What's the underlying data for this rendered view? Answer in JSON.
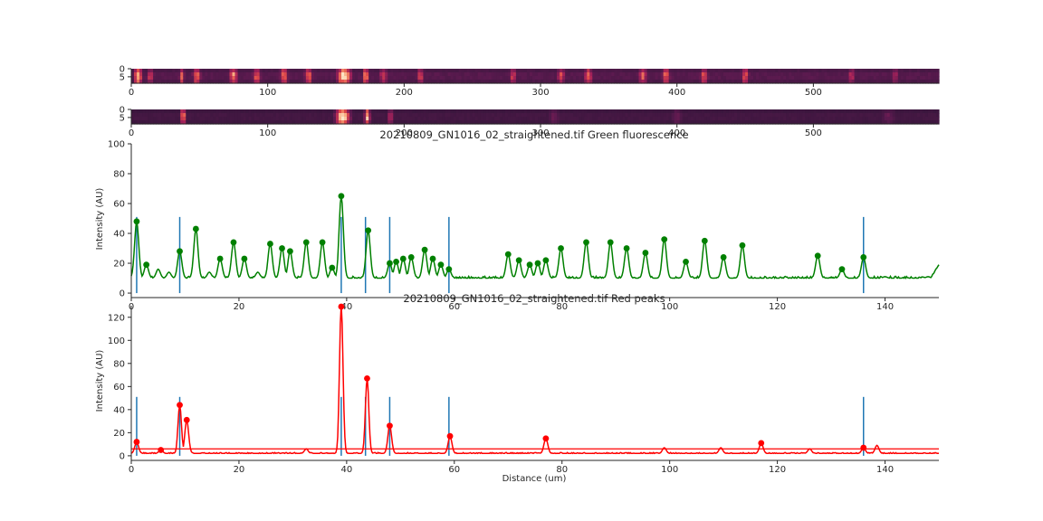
{
  "chart_data": [
    {
      "type": "heatmap",
      "xlim": [
        0,
        592
      ],
      "ylim": [
        0,
        9
      ],
      "xticks": [
        0,
        100,
        200,
        300,
        400,
        500
      ],
      "yticks": [
        0,
        5
      ],
      "colormap": [
        "#2d1536",
        "#5b1a4f",
        "#a3215a",
        "#e04a4a",
        "#f7a072",
        "#fde6c7"
      ],
      "background_value": 0.18,
      "hotspots": [
        {
          "x": 5,
          "w": 3,
          "v": 0.85
        },
        {
          "x": 14,
          "w": 2,
          "v": 0.55
        },
        {
          "x": 37,
          "w": 2,
          "v": 0.6
        },
        {
          "x": 48,
          "w": 3,
          "v": 0.65
        },
        {
          "x": 75,
          "w": 3,
          "v": 0.75
        },
        {
          "x": 92,
          "w": 3,
          "v": 0.6
        },
        {
          "x": 112,
          "w": 3,
          "v": 0.7
        },
        {
          "x": 130,
          "w": 3,
          "v": 0.65
        },
        {
          "x": 156,
          "w": 5,
          "v": 1.0
        },
        {
          "x": 172,
          "w": 2,
          "v": 0.8
        },
        {
          "x": 185,
          "w": 3,
          "v": 0.55
        },
        {
          "x": 212,
          "w": 3,
          "v": 0.5
        },
        {
          "x": 280,
          "w": 2,
          "v": 0.6
        },
        {
          "x": 315,
          "w": 3,
          "v": 0.55
        },
        {
          "x": 335,
          "w": 3,
          "v": 0.65
        },
        {
          "x": 375,
          "w": 3,
          "v": 0.6
        },
        {
          "x": 392,
          "w": 3,
          "v": 0.65
        },
        {
          "x": 420,
          "w": 3,
          "v": 0.6
        },
        {
          "x": 450,
          "w": 3,
          "v": 0.6
        },
        {
          "x": 528,
          "w": 3,
          "v": 0.45
        },
        {
          "x": 560,
          "w": 3,
          "v": 0.4
        }
      ]
    },
    {
      "type": "heatmap",
      "xlim": [
        0,
        592
      ],
      "ylim": [
        0,
        9
      ],
      "xticks": [
        0,
        100,
        200,
        300,
        400,
        500
      ],
      "yticks": [
        0,
        5
      ],
      "colormap": [
        "#2d1536",
        "#5b1a4f",
        "#a3215a",
        "#e04a4a",
        "#f7a072",
        "#fde6c7"
      ],
      "background_value": 0.1,
      "hotspots": [
        {
          "x": 38,
          "w": 2,
          "v": 0.75
        },
        {
          "x": 155,
          "w": 5,
          "v": 1.0
        },
        {
          "x": 173,
          "w": 2,
          "v": 0.85
        },
        {
          "x": 190,
          "w": 2,
          "v": 0.45
        },
        {
          "x": 310,
          "w": 4,
          "v": 0.25
        },
        {
          "x": 400,
          "w": 4,
          "v": 0.25
        },
        {
          "x": 555,
          "w": 6,
          "v": 0.22
        }
      ]
    },
    {
      "type": "line",
      "title": "20210809_GN1016_02_straightened.tif Green fluorescence",
      "ylabel": "Intensity (AU)",
      "xlabel": "",
      "xlim": [
        0,
        150
      ],
      "ylim": [
        -3,
        100
      ],
      "xticks": [
        0,
        20,
        40,
        60,
        80,
        100,
        120,
        140
      ],
      "yticks": [
        0,
        20,
        40,
        60,
        80,
        100
      ],
      "color": "#008000",
      "baseline": 10,
      "peaks": [
        {
          "x": 1.0,
          "y": 48
        },
        {
          "x": 2.8,
          "y": 19
        },
        {
          "x": 5.0,
          "y": 16,
          "hidden": true
        },
        {
          "x": 9.0,
          "y": 28
        },
        {
          "x": 12.0,
          "y": 43
        },
        {
          "x": 16.5,
          "y": 23
        },
        {
          "x": 19.0,
          "y": 34
        },
        {
          "x": 21.0,
          "y": 23
        },
        {
          "x": 25.8,
          "y": 33
        },
        {
          "x": 28.0,
          "y": 30
        },
        {
          "x": 29.5,
          "y": 28
        },
        {
          "x": 32.5,
          "y": 34
        },
        {
          "x": 35.5,
          "y": 34
        },
        {
          "x": 37.3,
          "y": 17
        },
        {
          "x": 39.0,
          "y": 65
        },
        {
          "x": 44.0,
          "y": 42
        },
        {
          "x": 48.0,
          "y": 20
        },
        {
          "x": 49.2,
          "y": 21
        },
        {
          "x": 50.5,
          "y": 23
        },
        {
          "x": 52.0,
          "y": 24
        },
        {
          "x": 54.5,
          "y": 29
        },
        {
          "x": 56.0,
          "y": 23
        },
        {
          "x": 57.5,
          "y": 19
        },
        {
          "x": 59.0,
          "y": 16
        },
        {
          "x": 70.0,
          "y": 26
        },
        {
          "x": 72.0,
          "y": 22
        },
        {
          "x": 74.0,
          "y": 19
        },
        {
          "x": 75.5,
          "y": 20
        },
        {
          "x": 77.0,
          "y": 22
        },
        {
          "x": 79.8,
          "y": 30
        },
        {
          "x": 84.5,
          "y": 34
        },
        {
          "x": 89.0,
          "y": 34
        },
        {
          "x": 92.0,
          "y": 30
        },
        {
          "x": 95.5,
          "y": 27
        },
        {
          "x": 99.0,
          "y": 36
        },
        {
          "x": 103.0,
          "y": 21
        },
        {
          "x": 106.5,
          "y": 35
        },
        {
          "x": 110.0,
          "y": 24
        },
        {
          "x": 113.5,
          "y": 32
        },
        {
          "x": 127.5,
          "y": 25
        },
        {
          "x": 132.0,
          "y": 16
        },
        {
          "x": 136.0,
          "y": 24
        }
      ],
      "extra_bumps": [
        {
          "x": 7.0,
          "y": 14
        },
        {
          "x": 14.5,
          "y": 14
        },
        {
          "x": 23.5,
          "y": 14
        },
        {
          "x": 62.0,
          "y": 8
        },
        {
          "x": 66.0,
          "y": 7
        },
        {
          "x": 118.0,
          "y": 8
        },
        {
          "x": 123.0,
          "y": 7
        },
        {
          "x": 140.0,
          "y": 11
        },
        {
          "x": 144.0,
          "y": 10
        },
        {
          "x": 148.0,
          "y": 11
        }
      ],
      "end_value": 19,
      "vlines": [
        1,
        9,
        39,
        43.5,
        48,
        59,
        136
      ],
      "vline_top": 51,
      "vline_color": "#1f77b4"
    },
    {
      "type": "line",
      "title": "20210809_GN1016_02_straightened.tif Red peaks",
      "ylabel": "Intensity (AU)",
      "xlabel": "Distance (um)",
      "xlim": [
        0,
        150
      ],
      "ylim": [
        -4,
        130
      ],
      "xticks": [
        0,
        20,
        40,
        60,
        80,
        100,
        120,
        140
      ],
      "yticks": [
        0,
        20,
        40,
        60,
        80,
        100,
        120
      ],
      "color": "#ff0000",
      "baseline": 2,
      "threshold": 6,
      "peaks": [
        {
          "x": 1.0,
          "y": 12
        },
        {
          "x": 5.5,
          "y": 5
        },
        {
          "x": 9.0,
          "y": 44
        },
        {
          "x": 10.3,
          "y": 31
        },
        {
          "x": 39.0,
          "y": 131
        },
        {
          "x": 43.8,
          "y": 67
        },
        {
          "x": 48.0,
          "y": 26
        },
        {
          "x": 59.2,
          "y": 17
        },
        {
          "x": 77.0,
          "y": 15
        },
        {
          "x": 117.0,
          "y": 11
        },
        {
          "x": 136.0,
          "y": 7
        }
      ],
      "extra_bumps": [
        {
          "x": 32.5,
          "y": 6
        },
        {
          "x": 99.0,
          "y": 7
        },
        {
          "x": 109.5,
          "y": 7
        },
        {
          "x": 126.0,
          "y": 6
        },
        {
          "x": 138.5,
          "y": 9
        }
      ],
      "vlines": [
        1,
        9,
        39,
        43.5,
        48,
        59,
        136
      ],
      "vline_top": 51,
      "vline_color": "#1f77b4"
    }
  ]
}
